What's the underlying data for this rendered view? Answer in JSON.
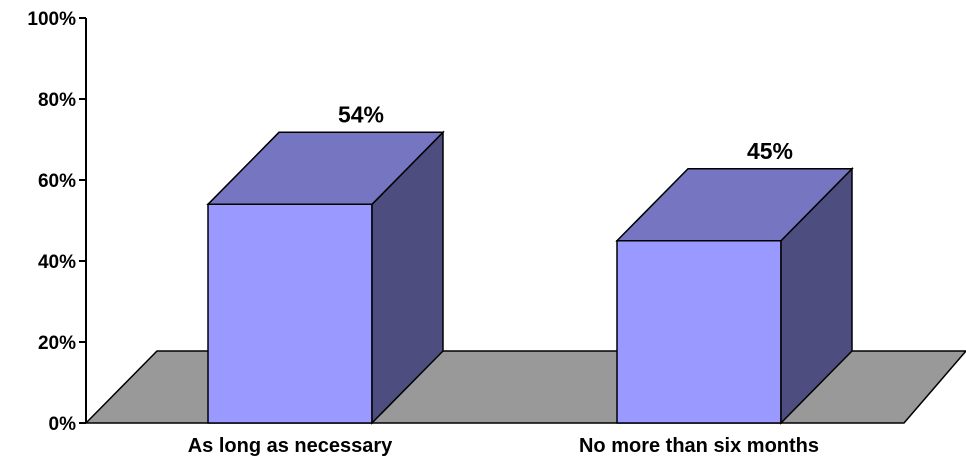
{
  "chart_data": {
    "type": "bar",
    "style": "3d-column",
    "categories": [
      "As long as necessary",
      "No more than six months"
    ],
    "values": [
      54,
      45
    ],
    "data_labels": [
      "54%",
      "45%"
    ],
    "ylim": [
      0,
      100
    ],
    "yticks": [
      0,
      20,
      40,
      60,
      80,
      100
    ],
    "ytick_labels": [
      "0%",
      "20%",
      "40%",
      "60%",
      "80%",
      "100%"
    ],
    "legend": "none",
    "grid": false,
    "colors": {
      "bar_front": "#9999FF",
      "bar_top": "#7575C2",
      "bar_side": "#4D4D80",
      "floor": "#999999",
      "outline": "#000000"
    }
  }
}
